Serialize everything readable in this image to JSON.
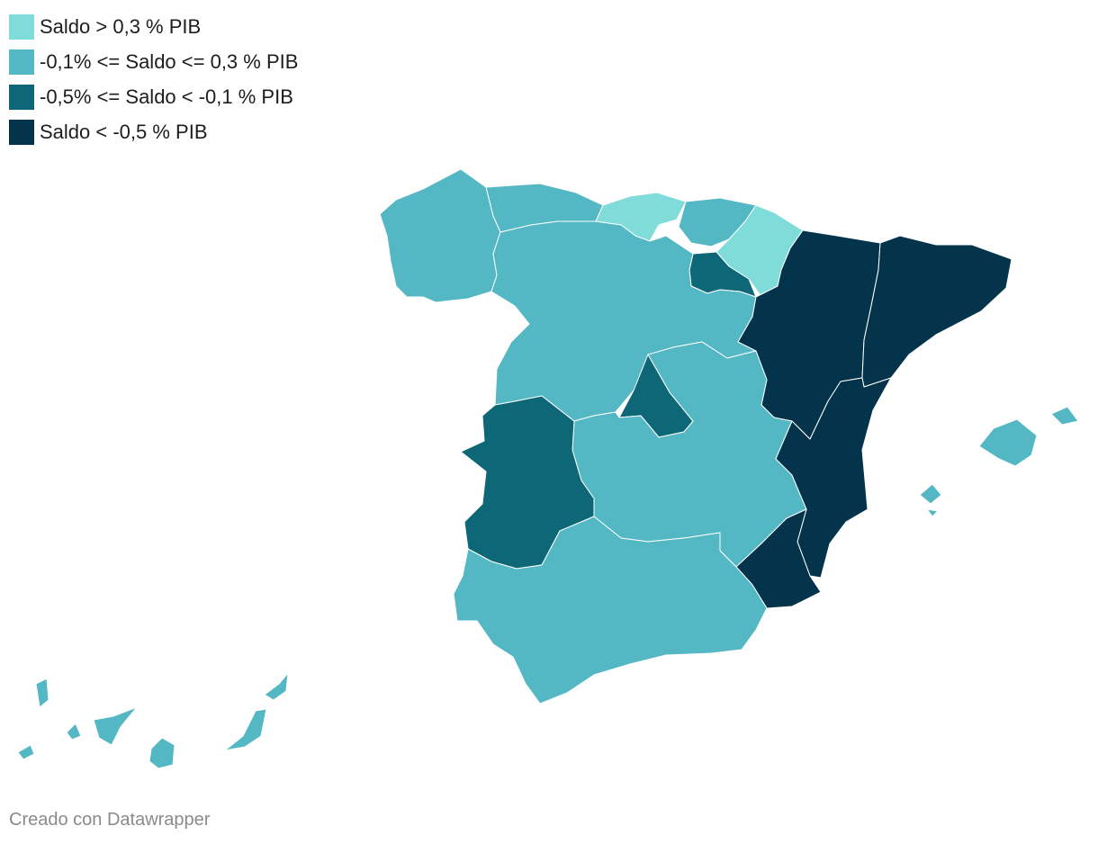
{
  "legend": {
    "items": [
      {
        "label": "Saldo > 0,3 % PIB",
        "color": "#7fdcd9"
      },
      {
        "label": "-0,1% <= Saldo <= 0,3 % PIB",
        "color": "#54b7c4"
      },
      {
        "label": "-0,5% <= Saldo < -0,1 % PIB",
        "color": "#0d6777"
      },
      {
        "label": "Saldo < -0,5 % PIB",
        "color": "#03344b"
      }
    ]
  },
  "credit": "Creado con Datawrapper"
}
